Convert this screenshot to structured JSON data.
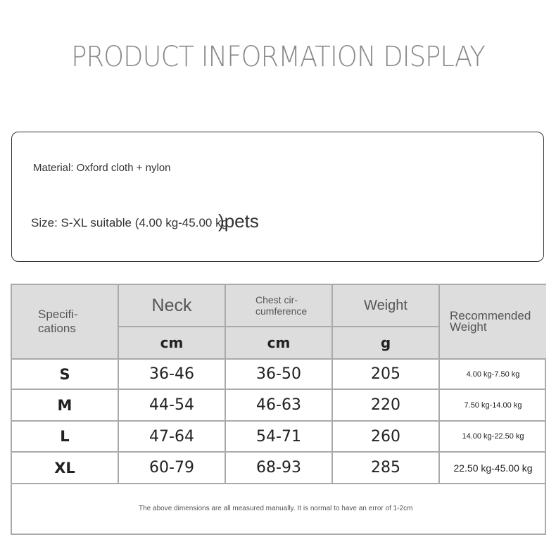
{
  "title": "PRODUCT INFORMATION DISPLAY",
  "info": {
    "material": "Material: Oxford cloth + nylon",
    "size": "Size: S-XL suitable (4.00 kg-45.00 kg",
    "size_suffix": ")pets"
  },
  "table": {
    "headers": {
      "spec": "Specifi-\ncations",
      "neck": "Neck",
      "chest": "Chest cir-\ncumference",
      "weight": "Weight",
      "recommended": "Recommended\nWeight"
    },
    "units": {
      "neck": "cm",
      "chest": "cm",
      "weight": "g"
    },
    "rows": [
      {
        "size": "S",
        "neck": "36-46",
        "chest": "36-50",
        "weight": "205",
        "recommended": "4.00 kg-7.50 kg"
      },
      {
        "size": "M",
        "neck": "44-54",
        "chest": "46-63",
        "weight": "220",
        "recommended": "7.50 kg-14.00 kg"
      },
      {
        "size": "L",
        "neck": "47-64",
        "chest": "54-71",
        "weight": "260",
        "recommended": "14.00 kg-22.50 kg"
      },
      {
        "size": "XL",
        "neck": "60-79",
        "chest": "68-93",
        "weight": "285",
        "recommended": "22.50 kg-45.00 kg"
      }
    ],
    "footnote": "The above dimensions are all measured manually. It is normal to have an error of 1-2cm"
  }
}
